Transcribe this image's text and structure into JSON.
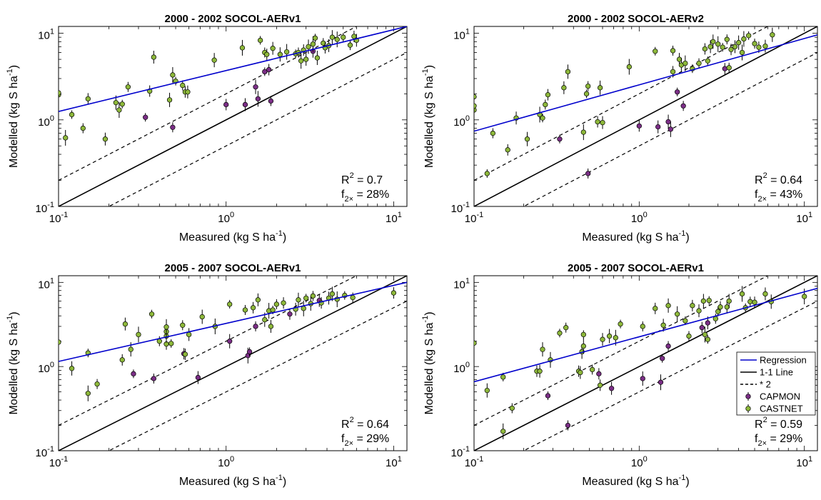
{
  "chart_data": [
    {
      "type": "scatter",
      "title": "2000 - 2002 SOCOL-AERv1",
      "xlabel": "Measured (kg S ha",
      "ylabel": "Modelled (kg S ha",
      "unit_exp": "-1",
      "xscale": "log",
      "yscale": "log",
      "xlim": [
        0.1,
        12
      ],
      "ylim": [
        0.1,
        12
      ],
      "xticks": [
        0.1,
        1,
        10
      ],
      "yticks": [
        0.1,
        1,
        10
      ],
      "r2_label": "R",
      "r2_value": " = 0.7",
      "f2x_label": "f",
      "f2x_sub": "2×",
      "f2x_value": " = 28%",
      "regression": {
        "x": [
          0.1,
          12
        ],
        "y": [
          1.25,
          12.0
        ]
      },
      "series": [
        {
          "name": "CAPMON",
          "color": "#7b2e86",
          "points": [
            [
              0.33,
              1.07
            ],
            [
              0.48,
              0.82
            ],
            [
              1.0,
              1.5
            ],
            [
              1.3,
              1.5
            ],
            [
              1.5,
              2.4
            ],
            [
              1.55,
              1.75
            ],
            [
              1.7,
              3.6
            ],
            [
              1.85,
              1.65
            ],
            [
              1.8,
              3.8
            ],
            [
              3.3,
              6.2
            ]
          ]
        },
        {
          "name": "CASTNET",
          "color": "#8db83a",
          "points": [
            [
              0.1,
              1.95
            ],
            [
              0.1,
              2.05
            ],
            [
              0.11,
              0.62
            ],
            [
              0.12,
              1.15
            ],
            [
              0.14,
              0.8
            ],
            [
              0.15,
              1.75
            ],
            [
              0.19,
              0.6
            ],
            [
              0.22,
              1.58
            ],
            [
              0.23,
              1.3
            ],
            [
              0.24,
              1.52
            ],
            [
              0.26,
              2.4
            ],
            [
              0.35,
              2.15
            ],
            [
              0.37,
              5.3
            ],
            [
              0.46,
              1.7
            ],
            [
              0.48,
              3.3
            ],
            [
              0.5,
              2.8
            ],
            [
              0.55,
              2.5
            ],
            [
              0.57,
              2.1
            ],
            [
              0.59,
              2.1
            ],
            [
              0.85,
              4.9
            ],
            [
              1.25,
              6.8
            ],
            [
              1.6,
              8.3
            ],
            [
              1.7,
              6.0
            ],
            [
              1.75,
              5.7
            ],
            [
              1.9,
              6.7
            ],
            [
              2.1,
              5.7
            ],
            [
              2.3,
              6.1
            ],
            [
              2.6,
              5.8
            ],
            [
              2.7,
              6.0
            ],
            [
              2.9,
              6.4
            ],
            [
              3.0,
              5.0
            ],
            [
              3.1,
              7.0
            ],
            [
              3.3,
              7.5
            ],
            [
              3.4,
              8.8
            ],
            [
              3.8,
              7.7
            ],
            [
              3.9,
              6.8
            ],
            [
              4.1,
              7.2
            ],
            [
              4.3,
              9.0
            ],
            [
              4.6,
              8.5
            ],
            [
              5.0,
              9.0
            ],
            [
              5.5,
              7.3
            ],
            [
              5.8,
              9.2
            ],
            [
              6.0,
              8.3
            ],
            [
              3.5,
              5.2
            ],
            [
              2.8,
              4.8
            ]
          ]
        }
      ]
    },
    {
      "type": "scatter",
      "title": "2000 - 2002 SOCOL-AERv2",
      "xlabel": "Measured (kg S ha",
      "ylabel": "Modelled (kg S ha",
      "unit_exp": "-1",
      "xscale": "log",
      "yscale": "log",
      "xlim": [
        0.1,
        12
      ],
      "ylim": [
        0.1,
        12
      ],
      "xticks": [
        0.1,
        1,
        10
      ],
      "yticks": [
        0.1,
        1,
        10
      ],
      "r2_label": "R",
      "r2_value": " = 0.64",
      "f2x_label": "f",
      "f2x_sub": "2×",
      "f2x_value": " = 43%",
      "regression": {
        "x": [
          0.1,
          12
        ],
        "y": [
          0.74,
          9.6
        ]
      },
      "series": [
        {
          "name": "CAPMON",
          "color": "#7b2e86",
          "points": [
            [
              0.33,
              0.6
            ],
            [
              0.49,
              0.24
            ],
            [
              1.0,
              0.85
            ],
            [
              1.3,
              0.83
            ],
            [
              1.5,
              0.95
            ],
            [
              1.55,
              0.78
            ],
            [
              1.7,
              2.1
            ],
            [
              1.85,
              1.45
            ],
            [
              3.3,
              3.9
            ]
          ]
        },
        {
          "name": "CASTNET",
          "color": "#8db83a",
          "points": [
            [
              0.1,
              1.85
            ],
            [
              0.1,
              1.3
            ],
            [
              0.1,
              1.45
            ],
            [
              0.12,
              0.24
            ],
            [
              0.13,
              0.7
            ],
            [
              0.16,
              0.45
            ],
            [
              0.18,
              1.05
            ],
            [
              0.21,
              0.6
            ],
            [
              0.25,
              1.15
            ],
            [
              0.26,
              1.05
            ],
            [
              0.27,
              1.5
            ],
            [
              0.28,
              1.95
            ],
            [
              0.35,
              2.35
            ],
            [
              0.37,
              3.6
            ],
            [
              0.46,
              0.72
            ],
            [
              0.48,
              2.0
            ],
            [
              0.49,
              2.45
            ],
            [
              0.56,
              0.95
            ],
            [
              0.6,
              0.93
            ],
            [
              0.58,
              2.35
            ],
            [
              0.87,
              4.1
            ],
            [
              1.25,
              6.2
            ],
            [
              1.6,
              6.3
            ],
            [
              1.6,
              3.6
            ],
            [
              1.75,
              5.0
            ],
            [
              1.8,
              4.3
            ],
            [
              1.9,
              4.5
            ],
            [
              2.1,
              3.9
            ],
            [
              2.3,
              4.5
            ],
            [
              2.5,
              6.6
            ],
            [
              2.7,
              7.0
            ],
            [
              2.8,
              8.0
            ],
            [
              3.0,
              7.5
            ],
            [
              3.2,
              6.9
            ],
            [
              3.4,
              8.5
            ],
            [
              3.6,
              6.5
            ],
            [
              3.8,
              7.0
            ],
            [
              4.0,
              7.8
            ],
            [
              4.3,
              8.6
            ],
            [
              4.6,
              9.4
            ],
            [
              5.0,
              7.6
            ],
            [
              5.3,
              6.9
            ],
            [
              5.8,
              7.1
            ],
            [
              6.4,
              9.6
            ],
            [
              4.2,
              6.0
            ],
            [
              2.6,
              4.8
            ],
            [
              3.5,
              4.0
            ]
          ]
        }
      ]
    },
    {
      "type": "scatter",
      "title": "2005 - 2007 SOCOL-AERv1",
      "xlabel": "Measured (kg S ha",
      "ylabel": "Modelled (kg S ha",
      "unit_exp": "-1",
      "xscale": "log",
      "yscale": "log",
      "xlim": [
        0.1,
        12
      ],
      "ylim": [
        0.1,
        12
      ],
      "xticks": [
        0.1,
        1,
        10
      ],
      "yticks": [
        0.1,
        1,
        10
      ],
      "r2_label": "R",
      "r2_value": " = 0.64",
      "f2x_label": "f",
      "f2x_sub": "2×",
      "f2x_value": " = 29%",
      "regression": {
        "x": [
          0.1,
          12
        ],
        "y": [
          1.15,
          10.0
        ]
      },
      "series": [
        {
          "name": "CAPMON",
          "color": "#7b2e86",
          "points": [
            [
              0.28,
              0.82
            ],
            [
              0.37,
              0.72
            ],
            [
              0.56,
              1.42
            ],
            [
              0.68,
              0.74
            ],
            [
              1.05,
              2.0
            ],
            [
              1.35,
              1.35
            ],
            [
              1.38,
              1.5
            ],
            [
              1.5,
              3.0
            ],
            [
              2.4,
              4.2
            ],
            [
              3.6,
              6.1
            ]
          ]
        },
        {
          "name": "CASTNET",
          "color": "#8db83a",
          "points": [
            [
              0.1,
              1.95
            ],
            [
              0.12,
              0.95
            ],
            [
              0.15,
              0.48
            ],
            [
              0.15,
              1.45
            ],
            [
              0.17,
              0.62
            ],
            [
              0.24,
              1.2
            ],
            [
              0.25,
              3.2
            ],
            [
              0.27,
              1.6
            ],
            [
              0.3,
              2.4
            ],
            [
              0.36,
              4.2
            ],
            [
              0.4,
              2.0
            ],
            [
              0.44,
              1.85
            ],
            [
              0.44,
              2.3
            ],
            [
              0.44,
              2.6
            ],
            [
              0.44,
              2.95
            ],
            [
              0.47,
              1.88
            ],
            [
              0.55,
              3.1
            ],
            [
              0.57,
              1.4
            ],
            [
              0.6,
              2.4
            ],
            [
              0.72,
              3.9
            ],
            [
              0.86,
              3.0
            ],
            [
              1.05,
              5.5
            ],
            [
              1.3,
              4.7
            ],
            [
              1.45,
              5.0
            ],
            [
              1.55,
              6.2
            ],
            [
              1.7,
              3.6
            ],
            [
              1.8,
              4.6
            ],
            [
              1.9,
              4.7
            ],
            [
              2.0,
              5.5
            ],
            [
              2.2,
              5.7
            ],
            [
              2.6,
              4.8
            ],
            [
              2.7,
              6.2
            ],
            [
              2.9,
              4.9
            ],
            [
              3.0,
              6.5
            ],
            [
              3.3,
              6.9
            ],
            [
              3.7,
              5.7
            ],
            [
              4.1,
              6.5
            ],
            [
              4.3,
              7.3
            ],
            [
              4.6,
              6.3
            ],
            [
              5.1,
              7.0
            ],
            [
              5.7,
              6.6
            ],
            [
              10.0,
              7.5
            ],
            [
              1.85,
              3.0
            ],
            [
              3.2,
              5.6
            ]
          ]
        }
      ]
    },
    {
      "type": "scatter",
      "title": "2005 - 2007 SOCOL-AERv1",
      "xlabel": "Measured (kg S ha",
      "ylabel": "Modelled (kg S ha",
      "unit_exp": "-1",
      "xscale": "log",
      "yscale": "log",
      "xlim": [
        0.1,
        12
      ],
      "ylim": [
        0.1,
        12
      ],
      "xticks": [
        0.1,
        1,
        10
      ],
      "yticks": [
        0.1,
        1,
        10
      ],
      "r2_label": "R",
      "r2_value": " = 0.59",
      "f2x_label": "f",
      "f2x_sub": "2×",
      "f2x_value": " = 29%",
      "regression": {
        "x": [
          0.1,
          12
        ],
        "y": [
          0.66,
          8.5
        ]
      },
      "legend": {
        "position": "right",
        "items": [
          {
            "label": "Regression",
            "kind": "line",
            "color": "#0000cc",
            "dash": false
          },
          {
            "label": "1-1 Line",
            "kind": "line",
            "color": "#000000",
            "dash": false
          },
          {
            "label": "* 2",
            "kind": "line",
            "color": "#000000",
            "dash": true
          },
          {
            "label": "CAPMON",
            "kind": "marker",
            "color": "#7b2e86"
          },
          {
            "label": "CASTNET",
            "kind": "marker",
            "color": "#8db83a"
          }
        ]
      },
      "series": [
        {
          "name": "CAPMON",
          "color": "#7b2e86",
          "points": [
            [
              0.28,
              0.45
            ],
            [
              0.37,
              0.2
            ],
            [
              0.57,
              0.82
            ],
            [
              0.68,
              0.55
            ],
            [
              1.05,
              0.72
            ],
            [
              1.35,
              0.65
            ],
            [
              1.38,
              1.25
            ],
            [
              1.5,
              1.75
            ],
            [
              2.4,
              2.9
            ],
            [
              2.6,
              3.3
            ]
          ]
        },
        {
          "name": "CASTNET",
          "color": "#8db83a",
          "points": [
            [
              0.1,
              1.9
            ],
            [
              0.12,
              0.52
            ],
            [
              0.15,
              0.17
            ],
            [
              0.15,
              0.75
            ],
            [
              0.17,
              0.32
            ],
            [
              0.24,
              0.88
            ],
            [
              0.25,
              0.88
            ],
            [
              0.26,
              1.6
            ],
            [
              0.29,
              1.2
            ],
            [
              0.33,
              2.5
            ],
            [
              0.36,
              2.9
            ],
            [
              0.43,
              0.88
            ],
            [
              0.44,
              0.85
            ],
            [
              0.45,
              1.5
            ],
            [
              0.46,
              1.75
            ],
            [
              0.46,
              2.4
            ],
            [
              0.52,
              0.92
            ],
            [
              0.58,
              0.6
            ],
            [
              0.6,
              2.1
            ],
            [
              0.66,
              2.3
            ],
            [
              0.72,
              2.2
            ],
            [
              0.77,
              3.2
            ],
            [
              1.05,
              3.0
            ],
            [
              1.25,
              4.9
            ],
            [
              1.4,
              3.1
            ],
            [
              1.5,
              5.3
            ],
            [
              1.7,
              4.2
            ],
            [
              1.9,
              3.5
            ],
            [
              2.0,
              2.3
            ],
            [
              2.1,
              5.3
            ],
            [
              2.3,
              4.6
            ],
            [
              2.45,
              6.0
            ],
            [
              2.5,
              2.4
            ],
            [
              2.6,
              2.1
            ],
            [
              2.9,
              3.7
            ],
            [
              3.1,
              5.1
            ],
            [
              3.4,
              5.1
            ],
            [
              3.5,
              6.0
            ],
            [
              4.2,
              7.3
            ],
            [
              4.4,
              5.0
            ],
            [
              4.7,
              5.9
            ],
            [
              5.0,
              5.8
            ],
            [
              5.8,
              7.3
            ],
            [
              6.3,
              5.9
            ],
            [
              10.0,
              6.8
            ],
            [
              2.65,
              6.1
            ],
            [
              3.0,
              4.5
            ]
          ]
        }
      ]
    }
  ]
}
